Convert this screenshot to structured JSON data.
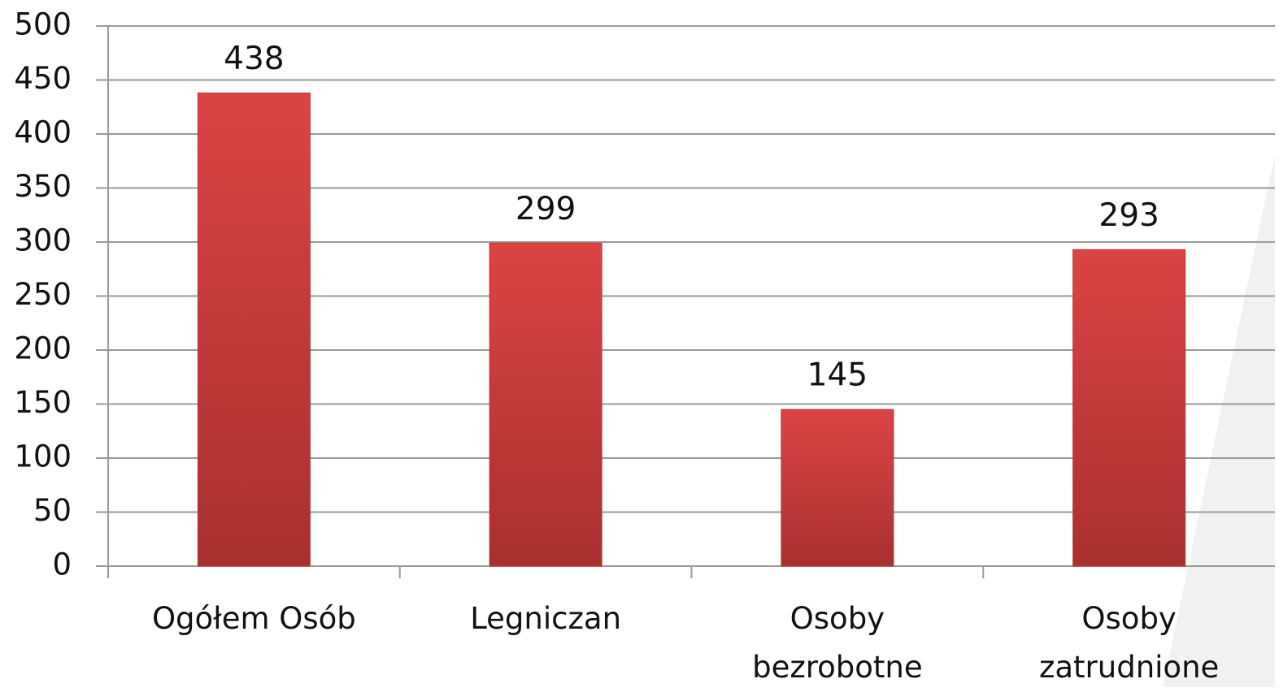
{
  "chart_data": {
    "type": "bar",
    "categories": [
      "Ogółem Osób",
      "Legniczan",
      "Osoby bezrobotne",
      "Osoby zatrudnione"
    ],
    "values": [
      438,
      299,
      145,
      293
    ],
    "color": "#c83a3a",
    "ylim": [
      0,
      500
    ],
    "yticks": [
      0,
      50,
      100,
      150,
      200,
      250,
      300,
      350,
      400,
      450,
      500
    ],
    "grid": true
  }
}
